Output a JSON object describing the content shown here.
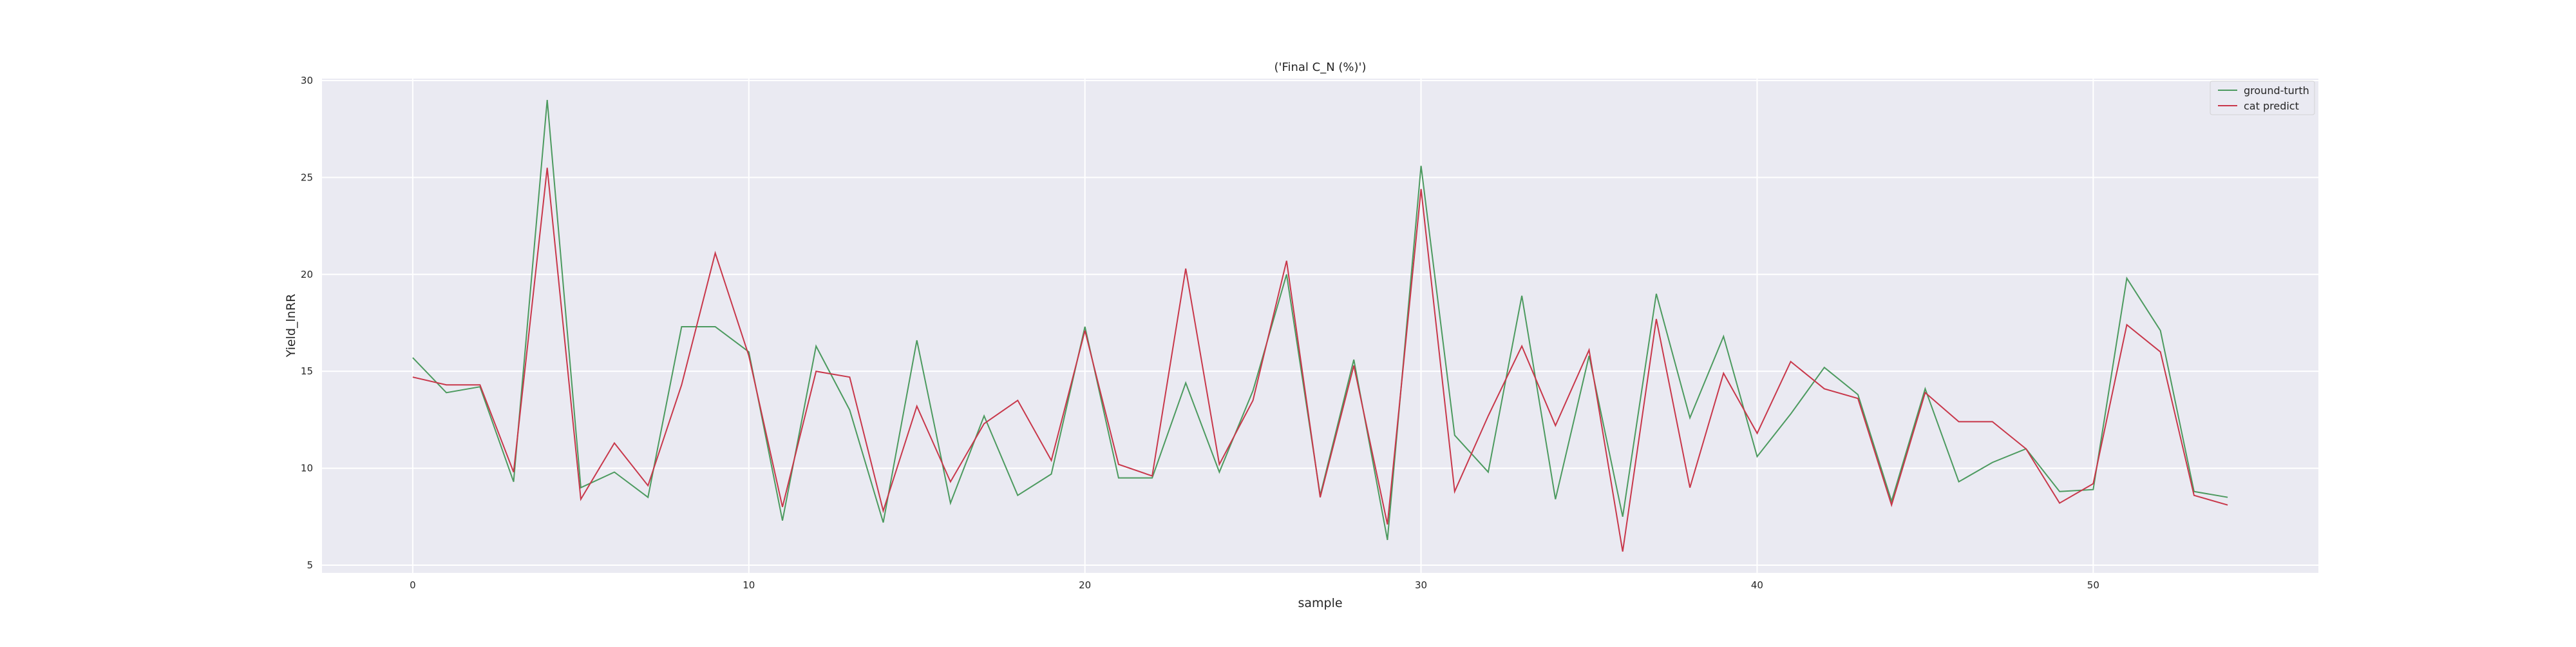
{
  "chart_data": {
    "type": "line",
    "title": "('Final C_N (%)')",
    "xlabel": "sample",
    "ylabel": "Yield_lnRR",
    "xlim": [
      -2.7,
      56.7
    ],
    "ylim": [
      4.6,
      30.1
    ],
    "xticks": [
      0,
      10,
      20,
      30,
      40,
      50
    ],
    "yticks": [
      5,
      10,
      15,
      20,
      25,
      30
    ],
    "grid": true,
    "legend_position": "top-right",
    "x": [
      0,
      1,
      2,
      3,
      4,
      5,
      6,
      7,
      8,
      9,
      10,
      11,
      12,
      13,
      14,
      15,
      16,
      17,
      18,
      19,
      20,
      21,
      22,
      23,
      24,
      25,
      26,
      27,
      28,
      29,
      30,
      31,
      32,
      33,
      34,
      35,
      36,
      37,
      38,
      39,
      40,
      41,
      42,
      43,
      44,
      45,
      46,
      47,
      48,
      49,
      50,
      51,
      52,
      53,
      54
    ],
    "series": [
      {
        "name": "ground-turth",
        "color": "#4c9a5f",
        "values": [
          15.7,
          13.9,
          14.2,
          9.3,
          29.0,
          9.0,
          9.8,
          8.5,
          17.3,
          17.3,
          16.0,
          7.3,
          16.3,
          13.0,
          7.2,
          16.6,
          8.2,
          12.7,
          8.6,
          9.7,
          17.3,
          9.5,
          9.5,
          14.4,
          9.8,
          14.0,
          20.0,
          8.6,
          15.6,
          6.3,
          25.6,
          11.7,
          9.8,
          18.9,
          8.4,
          15.8,
          7.5,
          19.0,
          12.6,
          16.8,
          10.6,
          12.8,
          15.2,
          13.8,
          8.3,
          14.1,
          9.3,
          10.3,
          11.0,
          8.8,
          8.9,
          19.8,
          17.1,
          8.8,
          8.5
        ],
        "show_label_in_legend": true
      },
      {
        "name": "cat predict",
        "color": "#c8374a",
        "values": [
          14.7,
          14.3,
          14.3,
          9.8,
          25.5,
          8.4,
          11.3,
          9.1,
          14.3,
          21.1,
          15.8,
          8.0,
          15.0,
          14.7,
          7.8,
          13.2,
          9.3,
          12.3,
          13.5,
          10.4,
          17.1,
          10.2,
          9.6,
          20.3,
          10.2,
          13.5,
          20.7,
          8.5,
          15.3,
          7.1,
          24.4,
          8.8,
          12.7,
          16.3,
          12.2,
          16.1,
          5.7,
          17.7,
          9.0,
          14.9,
          11.8,
          15.5,
          14.1,
          13.6,
          8.1,
          13.9,
          12.4,
          12.4,
          11.0,
          8.2,
          9.2,
          17.4,
          16.0,
          8.6,
          8.1
        ]
      }
    ]
  }
}
